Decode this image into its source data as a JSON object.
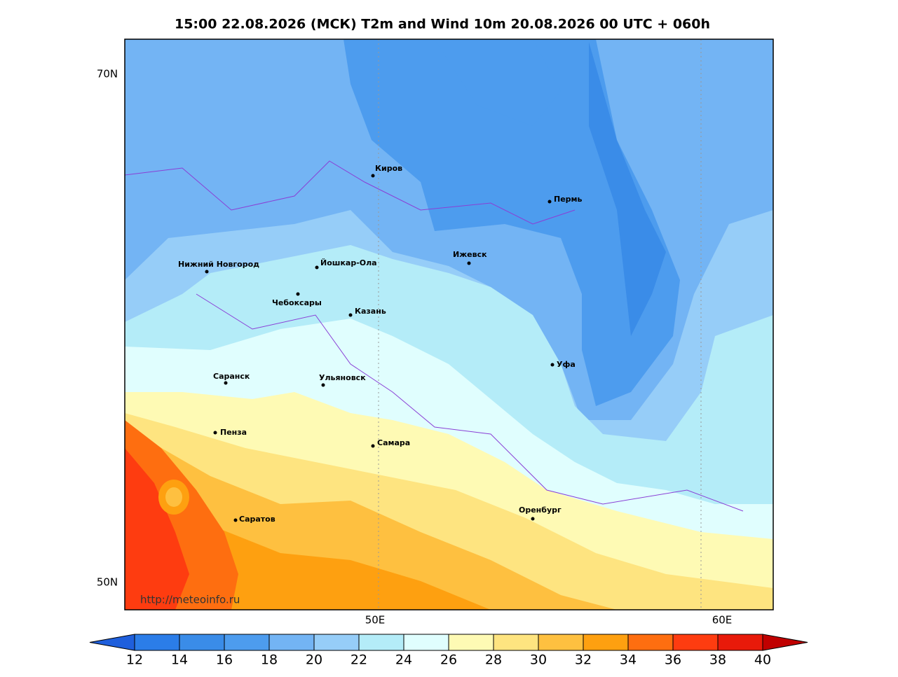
{
  "header": {
    "title": "15:00 22.08.2026 (МСК) T2m and Wind 10m 20.08.2026 00 UTC + 060h"
  },
  "map": {
    "lat_labels": [
      "70N",
      "50N"
    ],
    "lon_labels": [
      "50E",
      "60E"
    ],
    "cities": [
      "Киров",
      "Пермь",
      "Ижевск",
      "Нижний Новгород",
      "Йошкар-Ола",
      "Чебоксары",
      "Казань",
      "Уфа",
      "Саранск",
      "Ульяновск",
      "Пенза",
      "Самара",
      "Оренбург",
      "Саратов"
    ],
    "watermark": "http://meteoinfo.ru"
  },
  "colorbar": {
    "levels": [
      12,
      14,
      16,
      18,
      20,
      22,
      24,
      26,
      28,
      30,
      32,
      34,
      36,
      38,
      40
    ],
    "colors": [
      "#1f5fdc",
      "#2b7de8",
      "#3a8ce8",
      "#4d9cee",
      "#73b4f4",
      "#96cdf8",
      "#b4ecf8",
      "#e0fefe",
      "#fefab4",
      "#fee480",
      "#fec040",
      "#fea010",
      "#fe6e10",
      "#fe3c10",
      "#e81a0a",
      "#c00000"
    ]
  }
}
